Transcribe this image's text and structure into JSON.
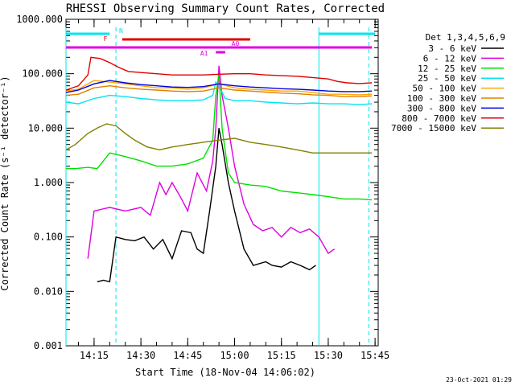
{
  "chart_data": {
    "type": "line",
    "title": "RHESSI Observing Summary Count Rates, Corrected",
    "xlabel": "Start Time (18-Nov-04 14:06:02)",
    "ylabel": "Corrected Count Rate (s⁻¹ detector⁻¹)",
    "yscale": "log",
    "ylim": [
      0.001,
      1000
    ],
    "xlim": [
      "14:06",
      "15:46"
    ],
    "y_ticks": [
      "1000.000",
      "100.000",
      "10.000",
      "1.000",
      "0.100",
      "0.010",
      "0.001"
    ],
    "x_ticks": [
      "14:15",
      "14:30",
      "14:45",
      "15:00",
      "15:15",
      "15:30",
      "15:45"
    ],
    "legend_header": "Det 1,3,4,5,6,9",
    "legend_position": "right",
    "grid": false,
    "footer": "23-Oct-2021 01:29",
    "flags": [
      {
        "label": "N",
        "color": "#00e5ee"
      },
      {
        "label": "F",
        "color": "#e00000"
      },
      {
        "label": "A0",
        "color": "#e000e0"
      },
      {
        "label": "A1",
        "color": "#e000e0"
      }
    ],
    "series": [
      {
        "name": "3 - 6 keV",
        "color": "#000000",
        "points": [
          [
            "14:16",
            0.015
          ],
          [
            "14:18",
            0.016
          ],
          [
            "14:20",
            0.015
          ],
          [
            "14:22",
            0.1
          ],
          [
            "14:25",
            0.09
          ],
          [
            "14:28",
            0.085
          ],
          [
            "14:31",
            0.1
          ],
          [
            "14:34",
            0.06
          ],
          [
            "14:37",
            0.09
          ],
          [
            "14:40",
            0.04
          ],
          [
            "14:43",
            0.13
          ],
          [
            "14:46",
            0.12
          ],
          [
            "14:48",
            0.06
          ],
          [
            "14:50",
            0.05
          ],
          [
            "14:52",
            0.3
          ],
          [
            "14:54",
            2
          ],
          [
            "14:55",
            10
          ],
          [
            "14:56",
            5
          ],
          [
            "14:58",
            1
          ],
          [
            "15:00",
            0.3
          ],
          [
            "15:03",
            0.06
          ],
          [
            "15:06",
            0.03
          ],
          [
            "15:10",
            0.035
          ],
          [
            "15:12",
            0.03
          ],
          [
            "15:15",
            0.028
          ],
          [
            "15:18",
            0.035
          ],
          [
            "15:21",
            0.03
          ],
          [
            "15:24",
            0.025
          ],
          [
            "15:26",
            0.03
          ]
        ]
      },
      {
        "name": "6 - 12 keV",
        "color": "#e000e0",
        "points": [
          [
            "14:13",
            0.04
          ],
          [
            "14:15",
            0.3
          ],
          [
            "14:20",
            0.35
          ],
          [
            "14:25",
            0.3
          ],
          [
            "14:30",
            0.35
          ],
          [
            "14:33",
            0.25
          ],
          [
            "14:36",
            1.0
          ],
          [
            "14:38",
            0.6
          ],
          [
            "14:40",
            1.0
          ],
          [
            "14:43",
            0.5
          ],
          [
            "14:45",
            0.3
          ],
          [
            "14:48",
            1.5
          ],
          [
            "14:51",
            0.7
          ],
          [
            "14:53",
            2.5
          ],
          [
            "14:54",
            10
          ],
          [
            "14:55",
            140
          ],
          [
            "14:56",
            40
          ],
          [
            "14:58",
            10
          ],
          [
            "15:00",
            2
          ],
          [
            "15:03",
            0.4
          ],
          [
            "15:06",
            0.17
          ],
          [
            "15:09",
            0.13
          ],
          [
            "15:12",
            0.15
          ],
          [
            "15:15",
            0.1
          ],
          [
            "15:18",
            0.15
          ],
          [
            "15:21",
            0.12
          ],
          [
            "15:24",
            0.14
          ],
          [
            "15:27",
            0.1
          ],
          [
            "15:30",
            0.05
          ],
          [
            "15:32",
            0.06
          ]
        ]
      },
      {
        "name": "12 - 25 keV",
        "color": "#00e000",
        "points": [
          [
            "14:06",
            1.8
          ],
          [
            "14:09",
            1.8
          ],
          [
            "14:13",
            1.9
          ],
          [
            "14:16",
            1.8
          ],
          [
            "14:20",
            3.5
          ],
          [
            "14:25",
            3
          ],
          [
            "14:30",
            2.5
          ],
          [
            "14:35",
            2
          ],
          [
            "14:40",
            2
          ],
          [
            "14:45",
            2.2
          ],
          [
            "14:50",
            2.8
          ],
          [
            "14:53",
            6
          ],
          [
            "14:54",
            40
          ],
          [
            "14:55",
            100
          ],
          [
            "14:56",
            10
          ],
          [
            "14:58",
            1.5
          ],
          [
            "15:00",
            1.0
          ],
          [
            "15:05",
            0.9
          ],
          [
            "15:10",
            0.85
          ],
          [
            "15:15",
            0.7
          ],
          [
            "15:20",
            0.65
          ],
          [
            "15:25",
            0.6
          ],
          [
            "15:30",
            0.55
          ],
          [
            "15:35",
            0.5
          ],
          [
            "15:40",
            0.5
          ],
          [
            "15:44",
            0.48
          ]
        ]
      },
      {
        "name": "25 - 50 keV",
        "color": "#00e5ee",
        "points": [
          [
            "14:06",
            30
          ],
          [
            "14:10",
            28
          ],
          [
            "14:15",
            35
          ],
          [
            "14:20",
            40
          ],
          [
            "14:25",
            38
          ],
          [
            "14:30",
            35
          ],
          [
            "14:35",
            33
          ],
          [
            "14:40",
            32
          ],
          [
            "14:45",
            32
          ],
          [
            "14:50",
            33
          ],
          [
            "14:53",
            40
          ],
          [
            "14:54",
            70
          ],
          [
            "14:55",
            60
          ],
          [
            "14:57",
            35
          ],
          [
            "15:00",
            32
          ],
          [
            "15:05",
            32
          ],
          [
            "15:10",
            30
          ],
          [
            "15:15",
            29
          ],
          [
            "15:20",
            28
          ],
          [
            "15:25",
            29
          ],
          [
            "15:30",
            28
          ],
          [
            "15:35",
            28
          ],
          [
            "15:40",
            27
          ],
          [
            "15:44",
            28
          ]
        ]
      },
      {
        "name": "50 - 100 keV",
        "color": "#ffa500",
        "points": [
          [
            "14:06",
            48
          ],
          [
            "14:10",
            52
          ],
          [
            "14:15",
            75
          ],
          [
            "14:20",
            70
          ],
          [
            "14:25",
            65
          ],
          [
            "14:30",
            60
          ],
          [
            "14:35",
            55
          ],
          [
            "14:40",
            55
          ],
          [
            "14:45",
            52
          ],
          [
            "14:50",
            55
          ],
          [
            "14:55",
            65
          ],
          [
            "15:00",
            55
          ],
          [
            "15:05",
            52
          ],
          [
            "15:10",
            50
          ],
          [
            "15:15",
            48
          ],
          [
            "15:20",
            48
          ],
          [
            "15:25",
            45
          ],
          [
            "15:30",
            42
          ],
          [
            "15:35",
            42
          ],
          [
            "15:40",
            41
          ],
          [
            "15:44",
            42
          ]
        ]
      },
      {
        "name": "100 - 300 keV",
        "color": "#e08000",
        "points": [
          [
            "14:06",
            40
          ],
          [
            "14:10",
            42
          ],
          [
            "14:15",
            55
          ],
          [
            "14:20",
            60
          ],
          [
            "14:25",
            55
          ],
          [
            "14:30",
            52
          ],
          [
            "14:35",
            50
          ],
          [
            "14:40",
            48
          ],
          [
            "14:45",
            47
          ],
          [
            "14:50",
            48
          ],
          [
            "14:55",
            55
          ],
          [
            "15:00",
            50
          ],
          [
            "15:05",
            48
          ],
          [
            "15:10",
            46
          ],
          [
            "15:15",
            44
          ],
          [
            "15:20",
            43
          ],
          [
            "15:25",
            41
          ],
          [
            "15:30",
            40
          ],
          [
            "15:35",
            38
          ],
          [
            "15:40",
            38
          ],
          [
            "15:44",
            39
          ]
        ]
      },
      {
        "name": "300 - 800 keV",
        "color": "#0000e0",
        "points": [
          [
            "14:06",
            45
          ],
          [
            "14:10",
            50
          ],
          [
            "14:15",
            65
          ],
          [
            "14:20",
            75
          ],
          [
            "14:25",
            68
          ],
          [
            "14:30",
            63
          ],
          [
            "14:35",
            60
          ],
          [
            "14:40",
            57
          ],
          [
            "14:45",
            56
          ],
          [
            "14:50",
            58
          ],
          [
            "14:55",
            65
          ],
          [
            "15:00",
            60
          ],
          [
            "15:05",
            57
          ],
          [
            "15:10",
            55
          ],
          [
            "15:15",
            53
          ],
          [
            "15:20",
            52
          ],
          [
            "15:25",
            50
          ],
          [
            "15:30",
            48
          ],
          [
            "15:35",
            47
          ],
          [
            "15:40",
            47
          ],
          [
            "15:44",
            48
          ]
        ]
      },
      {
        "name": "800 - 7000 keV",
        "color": "#e00000",
        "points": [
          [
            "14:06",
            50
          ],
          [
            "14:10",
            60
          ],
          [
            "14:13",
            95
          ],
          [
            "14:14",
            200
          ],
          [
            "14:17",
            190
          ],
          [
            "14:20",
            160
          ],
          [
            "14:23",
            130
          ],
          [
            "14:26",
            110
          ],
          [
            "14:30",
            105
          ],
          [
            "14:35",
            100
          ],
          [
            "14:40",
            95
          ],
          [
            "14:45",
            95
          ],
          [
            "14:50",
            95
          ],
          [
            "14:55",
            98
          ],
          [
            "15:00",
            100
          ],
          [
            "15:05",
            100
          ],
          [
            "15:10",
            95
          ],
          [
            "15:15",
            92
          ],
          [
            "15:20",
            90
          ],
          [
            "15:25",
            85
          ],
          [
            "15:30",
            80
          ],
          [
            "15:33",
            72
          ],
          [
            "15:36",
            68
          ],
          [
            "15:40",
            66
          ],
          [
            "15:44",
            68
          ]
        ]
      },
      {
        "name": "7000 - 15000 keV",
        "color": "#808000",
        "points": [
          [
            "14:06",
            4
          ],
          [
            "14:09",
            5
          ],
          [
            "14:13",
            8
          ],
          [
            "14:16",
            10
          ],
          [
            "14:19",
            12
          ],
          [
            "14:22",
            11
          ],
          [
            "14:25",
            8
          ],
          [
            "14:28",
            6
          ],
          [
            "14:32",
            4.5
          ],
          [
            "14:36",
            4
          ],
          [
            "14:40",
            4.5
          ],
          [
            "14:45",
            5
          ],
          [
            "14:50",
            5.5
          ],
          [
            "14:55",
            6
          ],
          [
            "15:00",
            6.5
          ],
          [
            "15:05",
            5.5
          ],
          [
            "15:10",
            5
          ],
          [
            "15:15",
            4.5
          ],
          [
            "15:20",
            4
          ],
          [
            "15:25",
            3.5
          ],
          [
            "15:30",
            3.5
          ],
          [
            "15:35",
            3.5
          ],
          [
            "15:40",
            3.5
          ],
          [
            "15:44",
            3.5
          ]
        ]
      }
    ]
  }
}
